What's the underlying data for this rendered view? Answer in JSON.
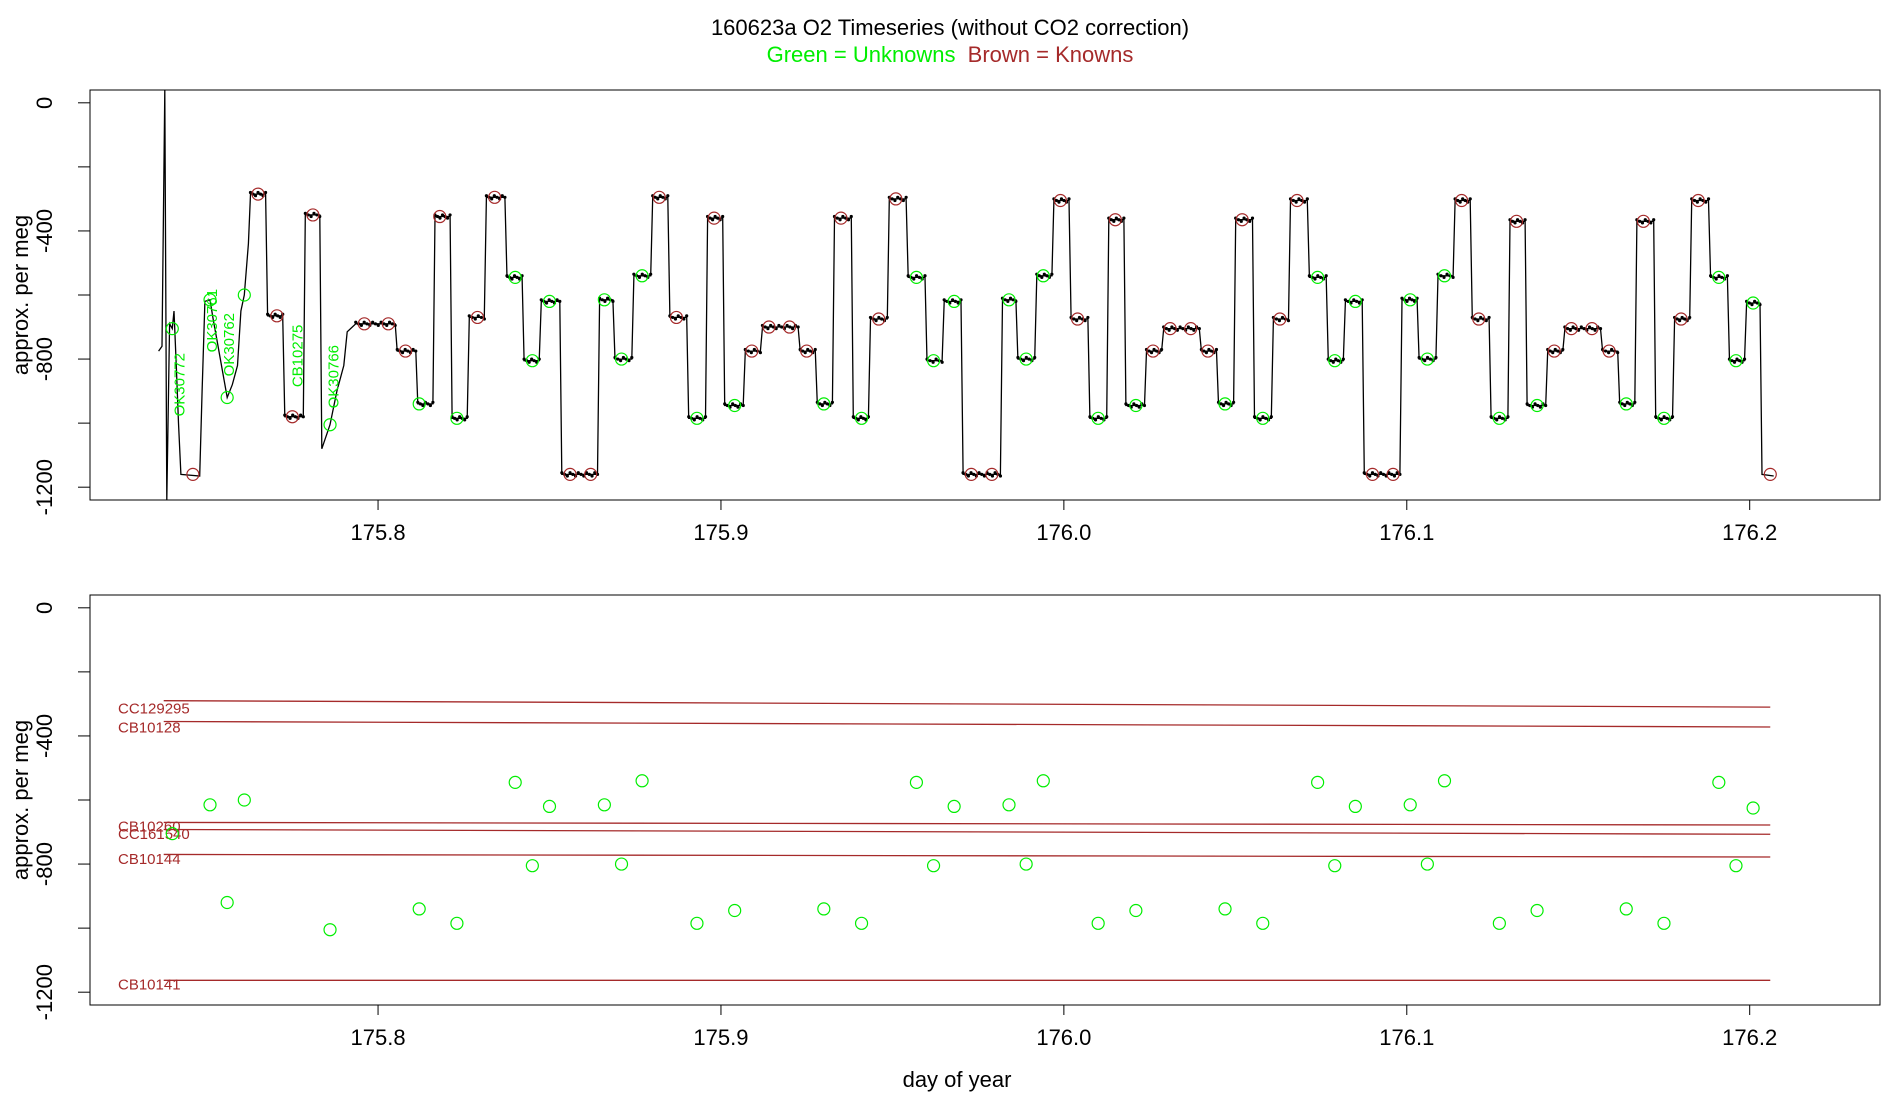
{
  "title": "160623a   O2 Timeseries (without CO2 correction)",
  "legend": {
    "unknowns_label": "Green = Unknowns",
    "knowns_label": "Brown = Knowns",
    "unknowns_color": "#00ee00",
    "knowns_color": "#a52a2a"
  },
  "chart_data": [
    {
      "type": "line",
      "panel": "top",
      "ylabel": "approx. per meg",
      "xlabel": "",
      "xlim": [
        175.716,
        176.238
      ],
      "ylim": [
        -1240,
        40
      ],
      "x_ticks": [
        175.8,
        175.9,
        176.0,
        176.1,
        176.2
      ],
      "x_tick_labels": [
        "175.8",
        "175.9",
        "176.0",
        "176.1",
        "176.2"
      ],
      "y_ticks": [
        0,
        -400,
        -800,
        -1200
      ],
      "y_tick_labels": [
        "0",
        "-400",
        "-800",
        "-1200"
      ],
      "annotations": [
        {
          "text": "OK30772",
          "x": 175.7435,
          "y": -880
        },
        {
          "text": "OK30761",
          "x": 175.753,
          "y": -680
        },
        {
          "text": "OK30762",
          "x": 175.758,
          "y": -755
        },
        {
          "text": "CB10275",
          "x": 175.778,
          "y": -790
        },
        {
          "text": "OK30766",
          "x": 175.7885,
          "y": -855
        }
      ],
      "unknown_points": [
        {
          "x": 175.74,
          "y": -705
        },
        {
          "x": 175.751,
          "y": -615
        },
        {
          "x": 175.756,
          "y": -920
        },
        {
          "x": 175.761,
          "y": -600
        },
        {
          "x": 175.786,
          "y": -1005
        },
        {
          "x": 175.812,
          "y": -940
        },
        {
          "x": 175.823,
          "y": -985
        },
        {
          "x": 175.84,
          "y": -545
        },
        {
          "x": 175.845,
          "y": -805
        },
        {
          "x": 175.85,
          "y": -620
        },
        {
          "x": 175.866,
          "y": -615
        },
        {
          "x": 175.871,
          "y": -800
        },
        {
          "x": 175.877,
          "y": -540
        },
        {
          "x": 175.893,
          "y": -985
        },
        {
          "x": 175.904,
          "y": -945
        },
        {
          "x": 175.93,
          "y": -940
        },
        {
          "x": 175.941,
          "y": -985
        },
        {
          "x": 175.957,
          "y": -545
        },
        {
          "x": 175.962,
          "y": -805
        },
        {
          "x": 175.968,
          "y": -620
        },
        {
          "x": 175.984,
          "y": -615
        },
        {
          "x": 175.989,
          "y": -800
        },
        {
          "x": 175.994,
          "y": -540
        },
        {
          "x": 176.01,
          "y": -985
        },
        {
          "x": 176.021,
          "y": -945
        },
        {
          "x": 176.047,
          "y": -940
        },
        {
          "x": 176.058,
          "y": -985
        },
        {
          "x": 176.074,
          "y": -545
        },
        {
          "x": 176.079,
          "y": -805
        },
        {
          "x": 176.085,
          "y": -620
        },
        {
          "x": 176.101,
          "y": -615
        },
        {
          "x": 176.106,
          "y": -800
        },
        {
          "x": 176.111,
          "y": -540
        },
        {
          "x": 176.127,
          "y": -985
        },
        {
          "x": 176.138,
          "y": -945
        },
        {
          "x": 176.164,
          "y": -940
        },
        {
          "x": 176.175,
          "y": -985
        },
        {
          "x": 176.191,
          "y": -545
        },
        {
          "x": 176.196,
          "y": -805
        },
        {
          "x": 176.201,
          "y": -625
        }
      ],
      "known_points": [
        {
          "x": 175.746,
          "y": -1160
        },
        {
          "x": 175.765,
          "y": -285
        },
        {
          "x": 175.7705,
          "y": -665
        },
        {
          "x": 175.775,
          "y": -980
        },
        {
          "x": 175.781,
          "y": -350
        },
        {
          "x": 175.796,
          "y": -690
        },
        {
          "x": 175.803,
          "y": -690
        },
        {
          "x": 175.808,
          "y": -775
        },
        {
          "x": 175.818,
          "y": -355
        },
        {
          "x": 175.829,
          "y": -670
        },
        {
          "x": 175.834,
          "y": -295
        },
        {
          "x": 175.856,
          "y": -1160
        },
        {
          "x": 175.862,
          "y": -1160
        },
        {
          "x": 175.882,
          "y": -295
        },
        {
          "x": 175.887,
          "y": -670
        },
        {
          "x": 175.898,
          "y": -360
        },
        {
          "x": 175.909,
          "y": -775
        },
        {
          "x": 175.914,
          "y": -700
        },
        {
          "x": 175.92,
          "y": -700
        },
        {
          "x": 175.925,
          "y": -775
        },
        {
          "x": 175.935,
          "y": -360
        },
        {
          "x": 175.946,
          "y": -675
        },
        {
          "x": 175.951,
          "y": -300
        },
        {
          "x": 175.973,
          "y": -1160
        },
        {
          "x": 175.979,
          "y": -1160
        },
        {
          "x": 175.999,
          "y": -305
        },
        {
          "x": 176.004,
          "y": -675
        },
        {
          "x": 176.015,
          "y": -365
        },
        {
          "x": 176.026,
          "y": -775
        },
        {
          "x": 176.031,
          "y": -705
        },
        {
          "x": 176.037,
          "y": -705
        },
        {
          "x": 176.042,
          "y": -775
        },
        {
          "x": 176.052,
          "y": -365
        },
        {
          "x": 176.063,
          "y": -675
        },
        {
          "x": 176.068,
          "y": -305
        },
        {
          "x": 176.09,
          "y": -1160
        },
        {
          "x": 176.096,
          "y": -1160
        },
        {
          "x": 176.116,
          "y": -305
        },
        {
          "x": 176.121,
          "y": -675
        },
        {
          "x": 176.132,
          "y": -370
        },
        {
          "x": 176.143,
          "y": -775
        },
        {
          "x": 176.148,
          "y": -705
        },
        {
          "x": 176.154,
          "y": -705
        },
        {
          "x": 176.159,
          "y": -775
        },
        {
          "x": 176.169,
          "y": -370
        },
        {
          "x": 176.18,
          "y": -675
        },
        {
          "x": 176.185,
          "y": -305
        },
        {
          "x": 176.206,
          "y": -1160
        }
      ],
      "trace": [
        [
          175.736,
          -775
        ],
        [
          175.737,
          -760
        ],
        [
          175.7378,
          40
        ],
        [
          175.7384,
          -1240
        ],
        [
          175.7392,
          -690
        ],
        [
          175.74,
          -705
        ],
        [
          175.7405,
          -650
        ],
        [
          175.7412,
          -830
        ],
        [
          175.7418,
          -1000
        ],
        [
          175.7425,
          -1160
        ],
        [
          175.748,
          -1165
        ],
        [
          175.7487,
          -900
        ],
        [
          175.7495,
          -620
        ],
        [
          175.751,
          -615
        ],
        [
          175.752,
          -680
        ],
        [
          175.753,
          -740
        ],
        [
          175.756,
          -920
        ],
        [
          175.7575,
          -880
        ],
        [
          175.759,
          -820
        ],
        [
          175.76,
          -650
        ],
        [
          175.761,
          -600
        ],
        [
          175.7622,
          -440
        ],
        [
          175.7628,
          -285
        ],
        [
          175.7672,
          -285
        ],
        [
          175.7678,
          -665
        ],
        [
          175.7722,
          -665
        ],
        [
          175.7728,
          -980
        ],
        [
          175.7782,
          -980
        ],
        [
          175.7788,
          -350
        ],
        [
          175.783,
          -350
        ],
        [
          175.7836,
          -1080
        ],
        [
          175.786,
          -1005
        ],
        [
          175.788,
          -900
        ],
        [
          175.79,
          -820
        ],
        [
          175.791,
          -715
        ],
        [
          175.7935,
          -690
        ],
        [
          175.805,
          -690
        ],
        [
          175.8056,
          -775
        ],
        [
          175.811,
          -775
        ],
        [
          175.8116,
          -940
        ],
        [
          175.816,
          -940
        ],
        [
          175.8166,
          -355
        ],
        [
          175.821,
          -355
        ],
        [
          175.8216,
          -985
        ],
        [
          175.826,
          -985
        ],
        [
          175.8266,
          -670
        ],
        [
          175.831,
          -670
        ],
        [
          175.8316,
          -295
        ],
        [
          175.837,
          -295
        ],
        [
          175.8376,
          -545
        ],
        [
          175.842,
          -545
        ],
        [
          175.8426,
          -805
        ],
        [
          175.847,
          -805
        ],
        [
          175.8476,
          -620
        ],
        [
          175.853,
          -620
        ],
        [
          175.8536,
          -1160
        ],
        [
          175.864,
          -1160
        ],
        [
          175.8646,
          -615
        ],
        [
          175.8685,
          -615
        ],
        [
          175.8691,
          -800
        ],
        [
          175.874,
          -800
        ],
        [
          175.8746,
          -540
        ],
        [
          175.8795,
          -540
        ],
        [
          175.8801,
          -295
        ],
        [
          175.8845,
          -295
        ],
        [
          175.8851,
          -670
        ],
        [
          175.89,
          -670
        ],
        [
          175.8906,
          -985
        ],
        [
          175.8955,
          -985
        ],
        [
          175.8961,
          -360
        ],
        [
          175.9005,
          -360
        ],
        [
          175.9011,
          -945
        ],
        [
          175.9065,
          -945
        ],
        [
          175.9071,
          -775
        ],
        [
          175.9115,
          -775
        ],
        [
          175.9121,
          -700
        ],
        [
          175.9225,
          -700
        ],
        [
          175.9231,
          -775
        ],
        [
          175.9275,
          -775
        ],
        [
          175.9281,
          -940
        ],
        [
          175.9325,
          -940
        ],
        [
          175.9331,
          -360
        ],
        [
          175.938,
          -360
        ],
        [
          175.9386,
          -985
        ],
        [
          175.943,
          -985
        ],
        [
          175.9436,
          -675
        ],
        [
          175.9485,
          -675
        ],
        [
          175.9491,
          -300
        ],
        [
          175.954,
          -300
        ],
        [
          175.9546,
          -545
        ],
        [
          175.9595,
          -545
        ],
        [
          175.9601,
          -805
        ],
        [
          175.9645,
          -805
        ],
        [
          175.9651,
          -620
        ],
        [
          175.97,
          -620
        ],
        [
          175.9706,
          -1160
        ],
        [
          175.9815,
          -1160
        ],
        [
          175.9821,
          -615
        ],
        [
          175.986,
          -615
        ],
        [
          175.9866,
          -800
        ],
        [
          175.9915,
          -800
        ],
        [
          175.9921,
          -540
        ],
        [
          175.9965,
          -540
        ],
        [
          175.9971,
          -305
        ],
        [
          176.0015,
          -305
        ],
        [
          176.0021,
          -675
        ],
        [
          176.007,
          -675
        ],
        [
          176.0076,
          -985
        ],
        [
          176.0125,
          -985
        ],
        [
          176.0131,
          -365
        ],
        [
          176.0175,
          -365
        ],
        [
          176.0181,
          -945
        ],
        [
          176.0235,
          -945
        ],
        [
          176.0241,
          -775
        ],
        [
          176.0285,
          -775
        ],
        [
          176.0291,
          -705
        ],
        [
          176.0395,
          -705
        ],
        [
          176.0401,
          -775
        ],
        [
          176.0445,
          -775
        ],
        [
          176.0451,
          -940
        ],
        [
          176.0495,
          -940
        ],
        [
          176.0501,
          -365
        ],
        [
          176.055,
          -365
        ],
        [
          176.0556,
          -985
        ],
        [
          176.0605,
          -985
        ],
        [
          176.0611,
          -675
        ],
        [
          176.0655,
          -675
        ],
        [
          176.0661,
          -305
        ],
        [
          176.071,
          -305
        ],
        [
          176.0716,
          -545
        ],
        [
          176.0765,
          -545
        ],
        [
          176.0771,
          -805
        ],
        [
          176.0815,
          -805
        ],
        [
          176.0821,
          -620
        ],
        [
          176.087,
          -620
        ],
        [
          176.0876,
          -1160
        ],
        [
          176.098,
          -1160
        ],
        [
          176.0986,
          -615
        ],
        [
          176.103,
          -615
        ],
        [
          176.1036,
          -800
        ],
        [
          176.1085,
          -800
        ],
        [
          176.1091,
          -540
        ],
        [
          176.1135,
          -540
        ],
        [
          176.1141,
          -305
        ],
        [
          176.1185,
          -305
        ],
        [
          176.1191,
          -675
        ],
        [
          176.124,
          -675
        ],
        [
          176.1246,
          -985
        ],
        [
          176.1295,
          -985
        ],
        [
          176.1301,
          -370
        ],
        [
          176.1345,
          -370
        ],
        [
          176.1351,
          -945
        ],
        [
          176.1405,
          -945
        ],
        [
          176.1411,
          -775
        ],
        [
          176.1455,
          -775
        ],
        [
          176.1461,
          -705
        ],
        [
          176.1565,
          -705
        ],
        [
          176.1571,
          -775
        ],
        [
          176.1615,
          -775
        ],
        [
          176.1621,
          -940
        ],
        [
          176.1665,
          -940
        ],
        [
          176.1671,
          -370
        ],
        [
          176.172,
          -370
        ],
        [
          176.1726,
          -985
        ],
        [
          176.1775,
          -985
        ],
        [
          176.1781,
          -675
        ],
        [
          176.1825,
          -675
        ],
        [
          176.1831,
          -305
        ],
        [
          176.188,
          -305
        ],
        [
          176.1886,
          -545
        ],
        [
          176.1935,
          -545
        ],
        [
          176.1941,
          -805
        ],
        [
          176.1985,
          -805
        ],
        [
          176.1991,
          -625
        ],
        [
          176.203,
          -625
        ],
        [
          176.2036,
          -1160
        ],
        [
          176.207,
          -1165
        ]
      ]
    },
    {
      "type": "scatter",
      "panel": "bottom",
      "ylabel": "approx. per meg",
      "xlabel": "day of year",
      "xlim": [
        175.716,
        176.238
      ],
      "ylim": [
        -1240,
        40
      ],
      "x_ticks": [
        175.8,
        175.9,
        176.0,
        176.1,
        176.2
      ],
      "x_tick_labels": [
        "175.8",
        "175.9",
        "176.0",
        "176.1",
        "176.2"
      ],
      "y_ticks": [
        0,
        -400,
        -800,
        -1200
      ],
      "y_tick_labels": [
        "0",
        "-400",
        "-800",
        "-1200"
      ],
      "reference_lines": [
        {
          "label": "CC129295",
          "label_y": -330,
          "x_start": 175.7375,
          "y_start": -290,
          "x_end": 176.206,
          "y_end": -310
        },
        {
          "label": "CB10128",
          "label_y": -390,
          "x_start": 175.7375,
          "y_start": -355,
          "x_end": 176.206,
          "y_end": -372
        },
        {
          "label": "CB10260",
          "label_y": -698,
          "x_start": 175.7375,
          "y_start": -670,
          "x_end": 176.206,
          "y_end": -678
        },
        {
          "label": "CC161540",
          "label_y": -722,
          "x_start": 175.7375,
          "y_start": -692,
          "x_end": 176.206,
          "y_end": -707
        },
        {
          "label": "CB10144",
          "label_y": -800,
          "x_start": 175.7375,
          "y_start": -770,
          "x_end": 176.206,
          "y_end": -778
        },
        {
          "label": "CB10141",
          "label_y": -1192,
          "x_start": 175.7375,
          "y_start": -1163,
          "x_end": 176.206,
          "y_end": -1163
        }
      ]
    }
  ]
}
